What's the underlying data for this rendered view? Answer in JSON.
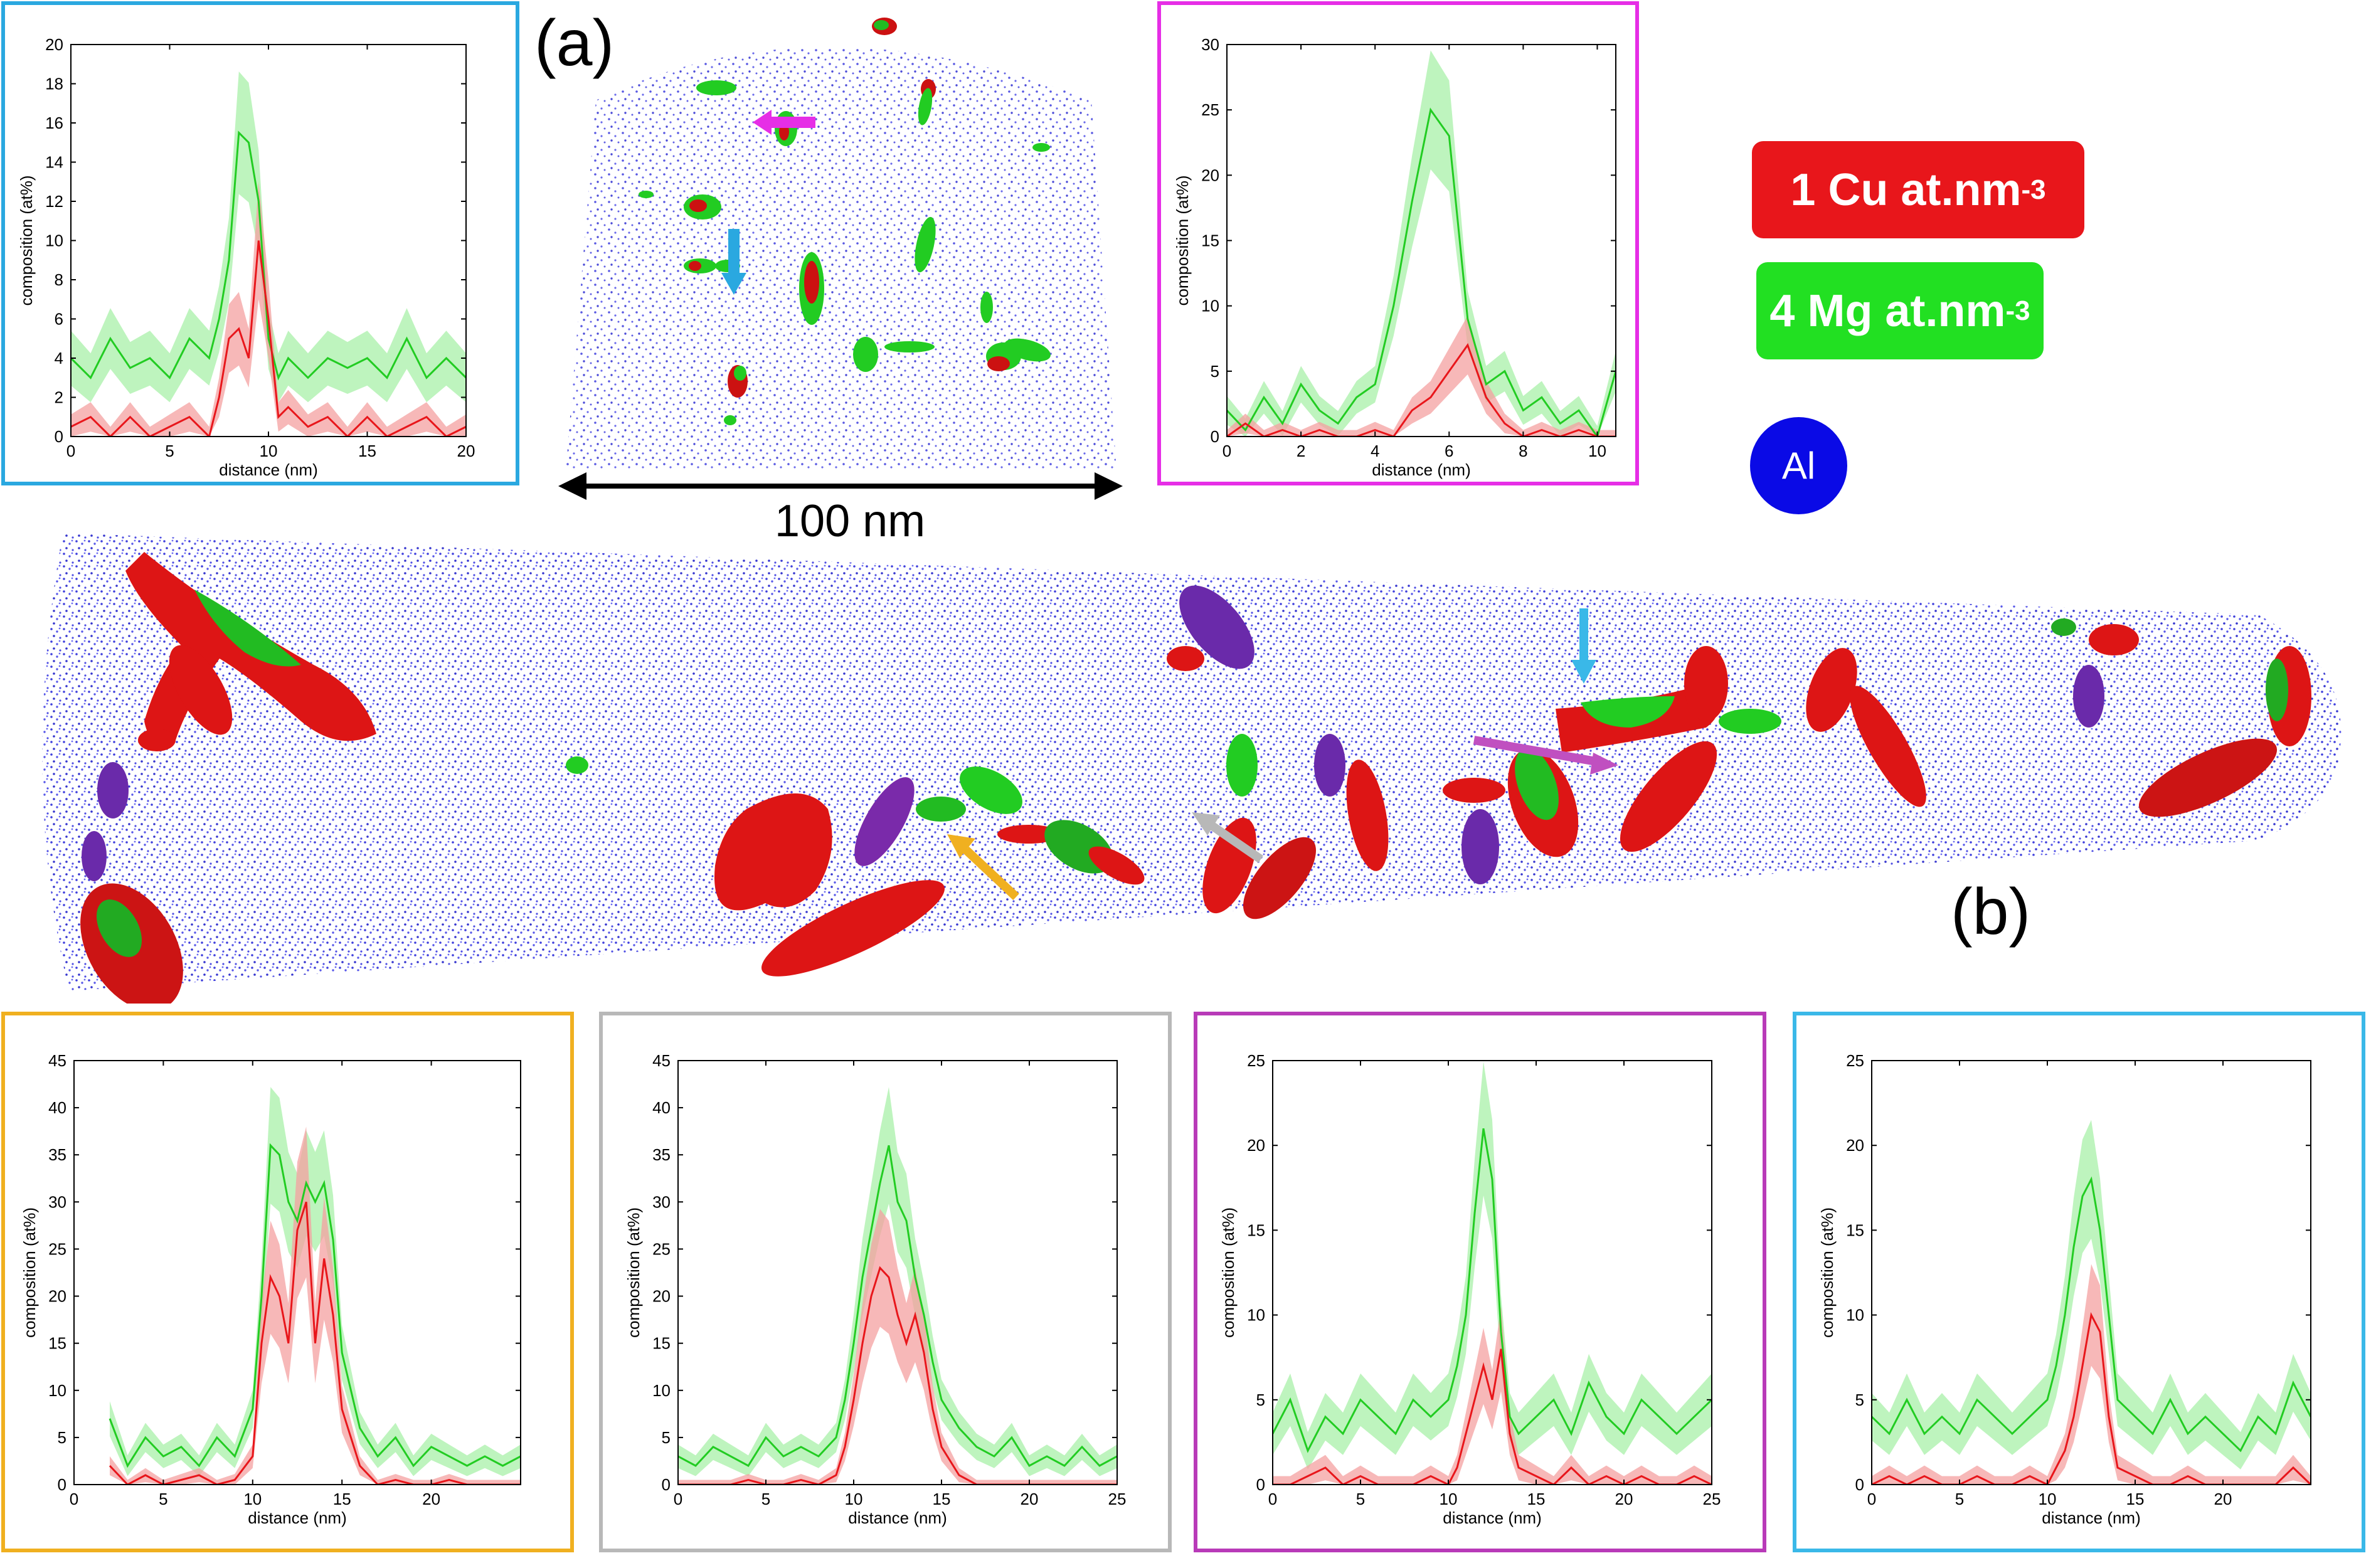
{
  "labels": {
    "a": "(a)",
    "b": "(b)",
    "scale": "100 nm"
  },
  "legend": {
    "cu": {
      "text": "1 Cu at.nm",
      "sup": "-3",
      "color": "#e8161b"
    },
    "mg": {
      "text": "4 Mg at.nm",
      "sup": "-3",
      "color": "#22e022"
    },
    "al": {
      "text": "Al",
      "color": "#0a0ae6"
    }
  },
  "colors": {
    "cu": "#e8161b",
    "mg": "#22cc22",
    "cu_band": "#f4a0a0",
    "mg_band": "#a8f0a8",
    "atoms": "#2222dd"
  },
  "chart_data": [
    {
      "id": "a-left",
      "type": "line",
      "frame_color": "#2aa8e0",
      "xlabel": "distance (nm)",
      "ylabel": "composition (at%)",
      "xlim": [
        0,
        20
      ],
      "ylim": [
        0,
        20
      ],
      "xticks": [
        0,
        5,
        10,
        15,
        20
      ],
      "yticks": [
        0,
        2,
        4,
        6,
        8,
        10,
        12,
        14,
        16,
        18,
        20
      ],
      "series": [
        {
          "name": "Mg",
          "color": "#22cc22",
          "x": [
            0,
            1,
            2,
            3,
            4,
            5,
            6,
            7,
            7.5,
            8,
            8.5,
            9,
            9.5,
            10,
            10.5,
            11,
            12,
            13,
            14,
            15,
            16,
            17,
            18,
            19,
            20
          ],
          "y": [
            4,
            3,
            5,
            3.5,
            4,
            3,
            5,
            4,
            6,
            9,
            15.5,
            15,
            12,
            5,
            3,
            4,
            3,
            4,
            3.5,
            4,
            3,
            5,
            3,
            4,
            3
          ]
        },
        {
          "name": "Cu",
          "color": "#e8161b",
          "x": [
            0,
            1,
            2,
            3,
            4,
            5,
            6,
            7,
            7.5,
            8,
            8.5,
            9,
            9.5,
            10,
            10.5,
            11,
            12,
            13,
            14,
            15,
            16,
            17,
            18,
            19,
            20
          ],
          "y": [
            0.5,
            1,
            0,
            1,
            0,
            0.5,
            1,
            0,
            2,
            5,
            5.5,
            4,
            10,
            6,
            1,
            1.5,
            0.5,
            1,
            0,
            1,
            0,
            0.5,
            1,
            0,
            0.5
          ]
        }
      ]
    },
    {
      "id": "a-right",
      "type": "line",
      "frame_color": "#e62ee6",
      "xlabel": "distance (nm)",
      "ylabel": "composition (at%)",
      "xlim": [
        0,
        10.5
      ],
      "ylim": [
        0,
        30
      ],
      "xticks": [
        0,
        2,
        4,
        6,
        8,
        10
      ],
      "yticks": [
        0,
        5,
        10,
        15,
        20,
        25,
        30
      ],
      "series": [
        {
          "name": "Mg",
          "color": "#22cc22",
          "x": [
            0,
            0.5,
            1,
            1.5,
            2,
            2.5,
            3,
            3.5,
            4,
            4.5,
            5,
            5.5,
            6,
            6.5,
            7,
            7.5,
            8,
            8.5,
            9,
            9.5,
            10,
            10.5
          ],
          "y": [
            2,
            0.5,
            3,
            1,
            4,
            2,
            1,
            3,
            4,
            10,
            18,
            25,
            23,
            9,
            4,
            5,
            2,
            3,
            1,
            2,
            0,
            5
          ]
        },
        {
          "name": "Cu",
          "color": "#e8161b",
          "x": [
            0,
            0.5,
            1,
            1.5,
            2,
            2.5,
            3,
            3.5,
            4,
            4.5,
            5,
            5.5,
            6,
            6.5,
            7,
            7.5,
            8,
            8.5,
            9,
            9.5,
            10,
            10.5
          ],
          "y": [
            0,
            1,
            0,
            0.5,
            0,
            0.5,
            0,
            0,
            0.5,
            0,
            2,
            3,
            5,
            7,
            3,
            1,
            0,
            0.5,
            0,
            0.5,
            0,
            0
          ]
        }
      ]
    },
    {
      "id": "b-1",
      "type": "line",
      "frame_color": "#f0b020",
      "xlabel": "distance (nm)",
      "ylabel": "composition (at%)",
      "xlim": [
        0,
        25
      ],
      "ylim": [
        0,
        45
      ],
      "xticks": [
        0,
        5,
        10,
        15,
        20
      ],
      "yticks": [
        0,
        5,
        10,
        15,
        20,
        25,
        30,
        35,
        40,
        45
      ],
      "series": [
        {
          "name": "Mg",
          "color": "#22cc22",
          "x": [
            2,
            3,
            4,
            5,
            6,
            7,
            8,
            9,
            10,
            10.5,
            11,
            11.5,
            12,
            12.5,
            13,
            13.5,
            14,
            14.5,
            15,
            16,
            17,
            18,
            19,
            20,
            21,
            22,
            23,
            24,
            25
          ],
          "y": [
            7,
            2,
            5,
            3,
            4,
            2,
            5,
            3,
            8,
            20,
            36,
            35,
            30,
            28,
            32,
            30,
            32,
            26,
            14,
            6,
            3,
            5,
            2,
            4,
            3,
            2,
            3,
            2,
            3
          ]
        },
        {
          "name": "Cu",
          "color": "#e8161b",
          "x": [
            2,
            3,
            4,
            5,
            6,
            7,
            8,
            9,
            10,
            10.5,
            11,
            11.5,
            12,
            12.5,
            13,
            13.5,
            14,
            14.5,
            15,
            16,
            17,
            18,
            19,
            20,
            21,
            22,
            23,
            24,
            25
          ],
          "y": [
            2,
            0,
            1,
            0,
            0.5,
            1,
            0,
            0.5,
            3,
            15,
            22,
            20,
            15,
            27,
            30,
            15,
            24,
            18,
            8,
            2,
            0,
            0.5,
            0,
            0,
            0.5,
            0,
            0,
            0,
            0
          ]
        }
      ]
    },
    {
      "id": "b-2",
      "type": "line",
      "frame_color": "#b8b8b8",
      "xlabel": "distance (nm)",
      "ylabel": "composition (at%)",
      "xlim": [
        0,
        25
      ],
      "ylim": [
        0,
        45
      ],
      "xticks": [
        0,
        5,
        10,
        15,
        20,
        25
      ],
      "yticks": [
        0,
        5,
        10,
        15,
        20,
        25,
        30,
        35,
        40,
        45
      ],
      "series": [
        {
          "name": "Mg",
          "color": "#22cc22",
          "x": [
            0,
            1,
            2,
            3,
            4,
            5,
            6,
            7,
            8,
            9,
            9.5,
            10,
            10.5,
            11,
            11.5,
            12,
            12.5,
            13,
            13.5,
            14,
            14.5,
            15,
            16,
            17,
            18,
            19,
            20,
            21,
            22,
            23,
            24,
            25
          ],
          "y": [
            3,
            2,
            4,
            3,
            2,
            5,
            3,
            4,
            3,
            5,
            9,
            15,
            22,
            27,
            32,
            36,
            30,
            28,
            22,
            18,
            13,
            9,
            6,
            4,
            3,
            5,
            2,
            3,
            2,
            4,
            2,
            3
          ]
        },
        {
          "name": "Cu",
          "color": "#e8161b",
          "x": [
            0,
            1,
            2,
            3,
            4,
            5,
            6,
            7,
            8,
            9,
            9.5,
            10,
            10.5,
            11,
            11.5,
            12,
            12.5,
            13,
            13.5,
            14,
            14.5,
            15,
            16,
            17,
            18,
            19,
            20,
            21,
            22,
            23,
            24,
            25
          ],
          "y": [
            0,
            0,
            0,
            0,
            0.5,
            0,
            0,
            0.5,
            0,
            1,
            4,
            9,
            15,
            20,
            23,
            22,
            18,
            15,
            18,
            14,
            8,
            4,
            1,
            0,
            0,
            0,
            0,
            0,
            0,
            0,
            0,
            0
          ]
        }
      ]
    },
    {
      "id": "b-3",
      "type": "line",
      "frame_color": "#b83ab8",
      "xlabel": "distance (nm)",
      "ylabel": "composition (at%)",
      "xlim": [
        0,
        25
      ],
      "ylim": [
        0,
        25
      ],
      "xticks": [
        0,
        5,
        10,
        15,
        20,
        25
      ],
      "yticks": [
        0,
        5,
        10,
        15,
        20,
        25
      ],
      "series": [
        {
          "name": "Mg",
          "color": "#22cc22",
          "x": [
            0,
            1,
            2,
            3,
            4,
            5,
            6,
            7,
            8,
            9,
            10,
            10.5,
            11,
            11.5,
            12,
            12.5,
            13,
            13.5,
            14,
            15,
            16,
            17,
            18,
            19,
            20,
            21,
            22,
            23,
            24,
            25
          ],
          "y": [
            3,
            5,
            2,
            4,
            3,
            5,
            4,
            3,
            5,
            4,
            5,
            7,
            10,
            16,
            21,
            18,
            9,
            4,
            3,
            4,
            5,
            3,
            6,
            4,
            3,
            5,
            4,
            3,
            4,
            5
          ]
        },
        {
          "name": "Cu",
          "color": "#e8161b",
          "x": [
            0,
            1,
            2,
            3,
            4,
            5,
            6,
            7,
            8,
            9,
            10,
            10.5,
            11,
            11.5,
            12,
            12.5,
            13,
            13.5,
            14,
            15,
            16,
            17,
            18,
            19,
            20,
            21,
            22,
            23,
            24,
            25
          ],
          "y": [
            0,
            0,
            0.5,
            1,
            0,
            0.5,
            0,
            0,
            0,
            0.5,
            0,
            1,
            3,
            5,
            7,
            5,
            8,
            3,
            1,
            0.5,
            0,
            1,
            0,
            0.5,
            0,
            0.5,
            0,
            0,
            0.5,
            0
          ]
        }
      ]
    },
    {
      "id": "b-4",
      "type": "line",
      "frame_color": "#3ab8e8",
      "xlabel": "distance (nm)",
      "ylabel": "composition (at%)",
      "xlim": [
        0,
        25
      ],
      "ylim": [
        0,
        25
      ],
      "xticks": [
        0,
        5,
        10,
        15,
        20
      ],
      "yticks": [
        0,
        5,
        10,
        15,
        20,
        25
      ],
      "series": [
        {
          "name": "Mg",
          "color": "#22cc22",
          "x": [
            0,
            1,
            2,
            3,
            4,
            5,
            6,
            7,
            8,
            9,
            10,
            10.5,
            11,
            11.5,
            12,
            12.5,
            13,
            13.5,
            14,
            15,
            16,
            17,
            18,
            19,
            20,
            21,
            22,
            23,
            24,
            25
          ],
          "y": [
            4,
            3,
            5,
            3,
            4,
            3,
            5,
            4,
            3,
            4,
            5,
            7,
            10,
            14,
            17,
            18,
            15,
            10,
            5,
            4,
            3,
            5,
            3,
            4,
            3,
            2,
            4,
            3,
            6,
            4
          ]
        },
        {
          "name": "Cu",
          "color": "#e8161b",
          "x": [
            0,
            1,
            2,
            3,
            4,
            5,
            6,
            7,
            8,
            9,
            10,
            10.5,
            11,
            11.5,
            12,
            12.5,
            13,
            13.5,
            14,
            15,
            16,
            17,
            18,
            19,
            20,
            21,
            22,
            23,
            24,
            25
          ],
          "y": [
            0,
            0.5,
            0,
            0.5,
            0,
            0,
            0.5,
            0,
            0,
            0.5,
            0,
            1,
            2,
            4,
            7,
            10,
            9,
            4,
            1,
            0.5,
            0,
            0,
            0.5,
            0,
            0,
            0,
            0,
            0,
            1,
            0
          ]
        }
      ]
    }
  ]
}
